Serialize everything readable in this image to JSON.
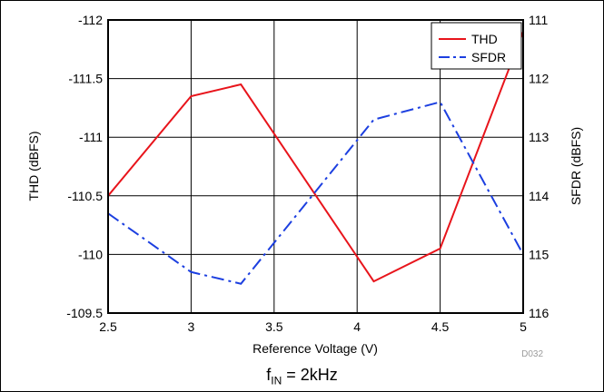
{
  "chart_data": {
    "type": "line",
    "x": [
      2.5,
      3.0,
      3.3,
      4.1,
      4.5,
      5.0
    ],
    "xlabel": "Reference Voltage (V)",
    "xlim": [
      2.5,
      5
    ],
    "xticks": [
      "2.5",
      "3",
      "3.5",
      "4",
      "4.5",
      "5"
    ],
    "y_left": {
      "label": "THD (dBFS)",
      "lim": [
        -112,
        -109.5
      ],
      "tick_labels": [
        "-112",
        "-111.5",
        "-111",
        "-110.5",
        "-110",
        "-109.5"
      ]
    },
    "y_right": {
      "label": "SFDR (dBFS)",
      "lim": [
        111,
        116
      ],
      "tick_labels": [
        "111",
        "112",
        "113",
        "114",
        "115",
        "116"
      ]
    },
    "series": [
      {
        "name": "THD",
        "axis": "left",
        "color": "#e8141b",
        "style": "solid",
        "y": [
          -110.5,
          -111.35,
          -111.45,
          -109.77,
          -110.05,
          -111.9
        ]
      },
      {
        "name": "SFDR",
        "axis": "right",
        "color": "#1c3fe0",
        "style": "dash-dot",
        "y": [
          114.3,
          115.3,
          115.5,
          112.7,
          112.4,
          115
        ]
      }
    ],
    "legend": "top-right",
    "grid": true,
    "code": "D032"
  },
  "caption": {
    "main": "f",
    "sub": "IN",
    "rest": " = 2kHz"
  }
}
